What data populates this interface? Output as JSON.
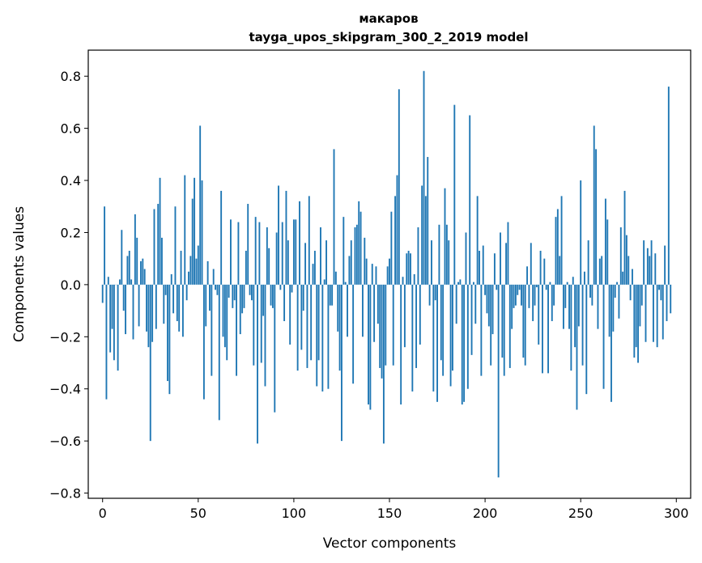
{
  "chart_data": {
    "type": "bar",
    "title": "макаров",
    "subtitle": "tayga_upos_skipgram_300_2_2019 model",
    "xlabel": "Vector components",
    "ylabel": "Components values",
    "xlim": [
      -7.5,
      307.5
    ],
    "ylim": [
      -0.82,
      0.9
    ],
    "xticks": [
      0,
      50,
      100,
      150,
      200,
      250,
      300
    ],
    "yticks": [
      -0.8,
      -0.6,
      -0.4,
      -0.2,
      0.0,
      0.2,
      0.4,
      0.6,
      0.8
    ],
    "ytick_labels": [
      "−0.8",
      "−0.6",
      "−0.4",
      "−0.2",
      "0.0",
      "0.2",
      "0.4",
      "0.6",
      "0.8"
    ],
    "grid": false,
    "bar_color": "#1f77b4",
    "values": [
      -0.07,
      0.3,
      -0.44,
      0.03,
      -0.26,
      -0.17,
      -0.29,
      0.0,
      -0.33,
      0.02,
      0.21,
      -0.1,
      -0.19,
      0.11,
      0.13,
      0.02,
      -0.21,
      0.27,
      0.18,
      -0.16,
      0.09,
      0.1,
      0.06,
      -0.18,
      -0.24,
      -0.6,
      -0.22,
      0.29,
      -0.17,
      0.31,
      0.41,
      0.18,
      -0.15,
      -0.04,
      -0.37,
      -0.42,
      0.04,
      -0.11,
      0.3,
      -0.14,
      -0.18,
      0.13,
      -0.2,
      0.42,
      -0.06,
      0.05,
      0.11,
      0.33,
      0.41,
      0.1,
      0.15,
      0.61,
      0.4,
      -0.44,
      -0.16,
      0.09,
      -0.1,
      -0.35,
      0.06,
      -0.02,
      -0.04,
      -0.52,
      0.36,
      -0.2,
      -0.24,
      -0.29,
      -0.05,
      0.25,
      -0.09,
      -0.06,
      -0.35,
      0.24,
      -0.19,
      -0.11,
      -0.09,
      0.13,
      0.31,
      -0.04,
      -0.06,
      -0.31,
      0.26,
      -0.61,
      0.24,
      -0.3,
      -0.12,
      -0.39,
      0.22,
      0.14,
      -0.08,
      -0.09,
      -0.49,
      0.2,
      0.38,
      -0.02,
      0.24,
      -0.14,
      0.36,
      0.17,
      -0.23,
      -0.03,
      0.25,
      0.25,
      -0.33,
      0.32,
      -0.25,
      -0.1,
      0.16,
      -0.32,
      0.34,
      -0.29,
      0.08,
      0.13,
      -0.39,
      -0.29,
      0.22,
      -0.41,
      0.02,
      0.17,
      -0.4,
      -0.08,
      -0.08,
      0.52,
      0.05,
      -0.18,
      -0.33,
      -0.6,
      0.26,
      0.01,
      -0.2,
      0.11,
      0.17,
      -0.38,
      0.22,
      0.23,
      0.32,
      0.28,
      -0.2,
      0.18,
      0.1,
      -0.46,
      -0.48,
      0.08,
      -0.22,
      0.07,
      -0.15,
      -0.32,
      -0.36,
      -0.61,
      -0.31,
      0.07,
      0.1,
      0.28,
      -0.31,
      0.34,
      0.42,
      0.75,
      -0.46,
      0.03,
      -0.24,
      0.12,
      0.13,
      0.12,
      -0.41,
      0.04,
      -0.32,
      0.22,
      -0.23,
      0.38,
      0.82,
      0.34,
      0.49,
      -0.08,
      0.17,
      -0.41,
      -0.06,
      -0.45,
      0.23,
      -0.29,
      -0.35,
      0.37,
      0.23,
      0.17,
      -0.39,
      -0.33,
      0.69,
      -0.15,
      0.01,
      0.02,
      -0.46,
      -0.45,
      0.2,
      -0.4,
      0.65,
      -0.27,
      0.01,
      -0.15,
      0.34,
      0.13,
      -0.35,
      0.15,
      -0.04,
      -0.11,
      -0.16,
      -0.31,
      -0.19,
      0.12,
      -0.02,
      -0.74,
      0.2,
      -0.28,
      -0.35,
      0.16,
      0.24,
      -0.32,
      -0.17,
      -0.09,
      -0.08,
      -0.04,
      -0.02,
      -0.08,
      -0.28,
      -0.31,
      0.07,
      -0.09,
      0.16,
      -0.14,
      -0.08,
      -0.01,
      -0.23,
      0.13,
      -0.34,
      0.1,
      -0.02,
      -0.34,
      0.01,
      -0.14,
      -0.08,
      0.26,
      0.29,
      0.11,
      0.34,
      -0.17,
      -0.09,
      0.01,
      -0.17,
      -0.33,
      0.03,
      -0.24,
      -0.48,
      -0.16,
      0.4,
      -0.31,
      0.05,
      -0.42,
      0.17,
      -0.05,
      -0.08,
      0.61,
      0.52,
      -0.17,
      0.1,
      0.11,
      -0.4,
      0.33,
      0.25,
      -0.2,
      -0.45,
      -0.18,
      -0.05,
      0.01,
      -0.13,
      0.22,
      0.05,
      0.36,
      0.19,
      0.11,
      -0.06,
      0.06,
      -0.28,
      -0.24,
      -0.3,
      -0.16,
      -0.08,
      0.17,
      -0.22,
      0.14,
      0.11,
      0.17,
      -0.22,
      0.12,
      -0.24,
      -0.02,
      -0.06,
      -0.21,
      0.15,
      -0.14,
      0.76,
      -0.11
    ]
  }
}
